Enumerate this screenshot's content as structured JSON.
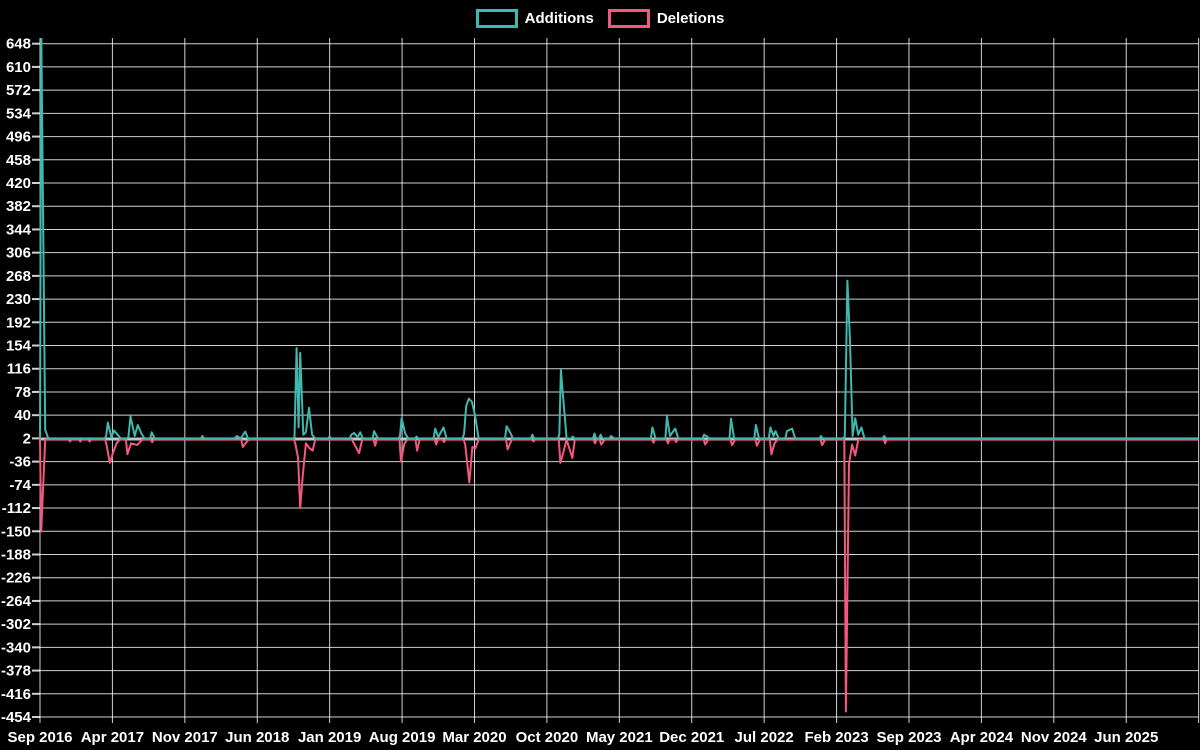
{
  "chart_data": {
    "type": "line",
    "title": "",
    "background": "#000000",
    "grid": true,
    "legend_position": "top-center",
    "text_color": "#ffffff",
    "grid_color": "rgba(255,255,255,0.82)",
    "zero_line_color": "#b8c6cc",
    "x_axis": {
      "unit": "months since Sep 2016",
      "tick_labels": [
        "Sep 2016",
        "Apr 2017",
        "Nov 2017",
        "Jun 2018",
        "Jan 2019",
        "Aug 2019",
        "Mar 2020",
        "Oct 2020",
        "May 2021",
        "Dec 2021",
        "Jul 2022",
        "Feb 2023",
        "Sep 2023",
        "Apr 2024",
        "Nov 2024",
        "Jun 2025"
      ],
      "tick_positions": [
        0,
        7,
        14,
        21,
        28,
        35,
        42,
        49,
        56,
        63,
        70,
        77,
        84,
        91,
        98,
        105
      ],
      "domain": [
        0,
        112
      ]
    },
    "y_axis": {
      "tick_values": [
        648,
        610,
        572,
        534,
        496,
        458,
        420,
        382,
        344,
        306,
        268,
        230,
        192,
        154,
        116,
        78,
        40,
        2,
        -36,
        -74,
        -112,
        -150,
        -188,
        -226,
        -264,
        -302,
        -340,
        -378,
        -416,
        -454
      ],
      "domain": [
        -454,
        648
      ]
    },
    "series": [
      {
        "name": "Additions",
        "color": "#3fb8af",
        "baseline": 2,
        "points": [
          [
            0,
            2
          ],
          [
            0.12,
            680
          ],
          [
            0.5,
            16
          ],
          [
            0.8,
            2
          ],
          [
            6.4,
            6
          ],
          [
            6.55,
            28
          ],
          [
            6.9,
            4
          ],
          [
            7.15,
            15
          ],
          [
            7.5,
            8
          ],
          [
            7.8,
            2
          ],
          [
            8.55,
            4
          ],
          [
            8.75,
            38
          ],
          [
            9.15,
            6
          ],
          [
            9.45,
            24
          ],
          [
            9.8,
            10
          ],
          [
            10.1,
            2
          ],
          [
            10.8,
            12
          ],
          [
            11.1,
            2
          ],
          [
            15.7,
            6
          ],
          [
            19.0,
            6
          ],
          [
            19.4,
            2
          ],
          [
            19.85,
            13
          ],
          [
            20.1,
            2
          ],
          [
            24.6,
            4
          ],
          [
            24.8,
            150
          ],
          [
            25.0,
            20
          ],
          [
            25.15,
            142
          ],
          [
            25.45,
            8
          ],
          [
            25.7,
            12
          ],
          [
            26.0,
            52
          ],
          [
            26.3,
            8
          ],
          [
            26.6,
            2
          ],
          [
            28.0,
            5
          ],
          [
            30.1,
            8
          ],
          [
            30.35,
            11
          ],
          [
            30.7,
            4
          ],
          [
            30.95,
            12
          ],
          [
            31.2,
            2
          ],
          [
            32.3,
            14
          ],
          [
            32.6,
            4
          ],
          [
            34.8,
            6
          ],
          [
            34.95,
            35
          ],
          [
            35.3,
            10
          ],
          [
            35.6,
            2
          ],
          [
            36.4,
            5
          ],
          [
            38.2,
            18
          ],
          [
            38.5,
            4
          ],
          [
            39.0,
            20
          ],
          [
            39.3,
            2
          ],
          [
            41.0,
            10
          ],
          [
            41.2,
            55
          ],
          [
            41.45,
            67
          ],
          [
            41.75,
            62
          ],
          [
            42.05,
            40
          ],
          [
            42.4,
            2
          ],
          [
            45.1,
            22
          ],
          [
            45.5,
            10
          ],
          [
            45.7,
            2
          ],
          [
            47.6,
            8
          ],
          [
            50.2,
            8
          ],
          [
            50.35,
            114
          ],
          [
            50.6,
            62
          ],
          [
            50.9,
            2
          ],
          [
            51.5,
            5
          ],
          [
            53.6,
            10
          ],
          [
            54.2,
            8
          ],
          [
            55.2,
            6
          ],
          [
            55.5,
            2
          ],
          [
            59.2,
            20
          ],
          [
            59.5,
            2
          ],
          [
            60.6,
            38
          ],
          [
            60.9,
            6
          ],
          [
            61.4,
            18
          ],
          [
            61.7,
            2
          ],
          [
            64.2,
            8
          ],
          [
            64.5,
            5
          ],
          [
            66.8,
            34
          ],
          [
            67.1,
            2
          ],
          [
            69.2,
            24
          ],
          [
            69.5,
            2
          ],
          [
            70.6,
            20
          ],
          [
            70.9,
            6
          ],
          [
            71.1,
            14
          ],
          [
            71.4,
            2
          ],
          [
            72.2,
            14
          ],
          [
            72.7,
            18
          ],
          [
            73.0,
            2
          ],
          [
            75.5,
            6
          ],
          [
            77.8,
            6
          ],
          [
            78.05,
            260
          ],
          [
            78.3,
            162
          ],
          [
            78.55,
            6
          ],
          [
            78.8,
            35
          ],
          [
            79.1,
            8
          ],
          [
            79.4,
            20
          ],
          [
            79.7,
            2
          ],
          [
            81.6,
            6
          ],
          [
            111.9,
            2
          ]
        ]
      },
      {
        "name": "Deletions",
        "color": "#f2597c",
        "baseline": 0,
        "points": [
          [
            0,
            0
          ],
          [
            0.12,
            -150
          ],
          [
            0.5,
            0
          ],
          [
            2.9,
            -3
          ],
          [
            3.9,
            -3
          ],
          [
            4.8,
            -3
          ],
          [
            6.45,
            -10
          ],
          [
            6.75,
            -38
          ],
          [
            7.1,
            -20
          ],
          [
            7.4,
            -6
          ],
          [
            7.7,
            0
          ],
          [
            8.45,
            -24
          ],
          [
            8.8,
            -6
          ],
          [
            9.4,
            -9
          ],
          [
            9.9,
            0
          ],
          [
            10.85,
            -4
          ],
          [
            19.6,
            -12
          ],
          [
            19.9,
            -5
          ],
          [
            20.2,
            0
          ],
          [
            24.7,
            -8
          ],
          [
            24.95,
            -30
          ],
          [
            25.15,
            -112
          ],
          [
            25.4,
            -58
          ],
          [
            25.7,
            -6
          ],
          [
            26.05,
            -14
          ],
          [
            26.35,
            -18
          ],
          [
            26.6,
            0
          ],
          [
            30.3,
            -5
          ],
          [
            30.85,
            -22
          ],
          [
            31.15,
            0
          ],
          [
            32.4,
            -10
          ],
          [
            34.9,
            -36
          ],
          [
            35.2,
            -8
          ],
          [
            35.5,
            0
          ],
          [
            36.45,
            -18
          ],
          [
            36.7,
            0
          ],
          [
            38.3,
            -8
          ],
          [
            39.05,
            -4
          ],
          [
            41.1,
            -8
          ],
          [
            41.5,
            -70
          ],
          [
            41.8,
            -12
          ],
          [
            42.1,
            -14
          ],
          [
            42.4,
            0
          ],
          [
            45.2,
            -16
          ],
          [
            45.6,
            0
          ],
          [
            47.7,
            -3
          ],
          [
            50.3,
            -38
          ],
          [
            50.6,
            -20
          ],
          [
            50.9,
            0
          ],
          [
            51.45,
            -30
          ],
          [
            51.7,
            0
          ],
          [
            53.65,
            -6
          ],
          [
            54.25,
            -8
          ],
          [
            54.6,
            0
          ],
          [
            59.3,
            -5
          ],
          [
            60.7,
            -6
          ],
          [
            61.5,
            -4
          ],
          [
            64.3,
            -8
          ],
          [
            64.6,
            0
          ],
          [
            66.9,
            -9
          ],
          [
            67.2,
            0
          ],
          [
            69.3,
            -10
          ],
          [
            69.6,
            0
          ],
          [
            70.7,
            -24
          ],
          [
            71.0,
            -6
          ],
          [
            71.3,
            0
          ],
          [
            75.6,
            -9
          ],
          [
            75.9,
            0
          ],
          [
            77.9,
            -445
          ],
          [
            78.2,
            -40
          ],
          [
            78.5,
            -8
          ],
          [
            78.8,
            -26
          ],
          [
            79.1,
            0
          ],
          [
            81.7,
            -6
          ],
          [
            111.9,
            0
          ]
        ]
      }
    ]
  }
}
